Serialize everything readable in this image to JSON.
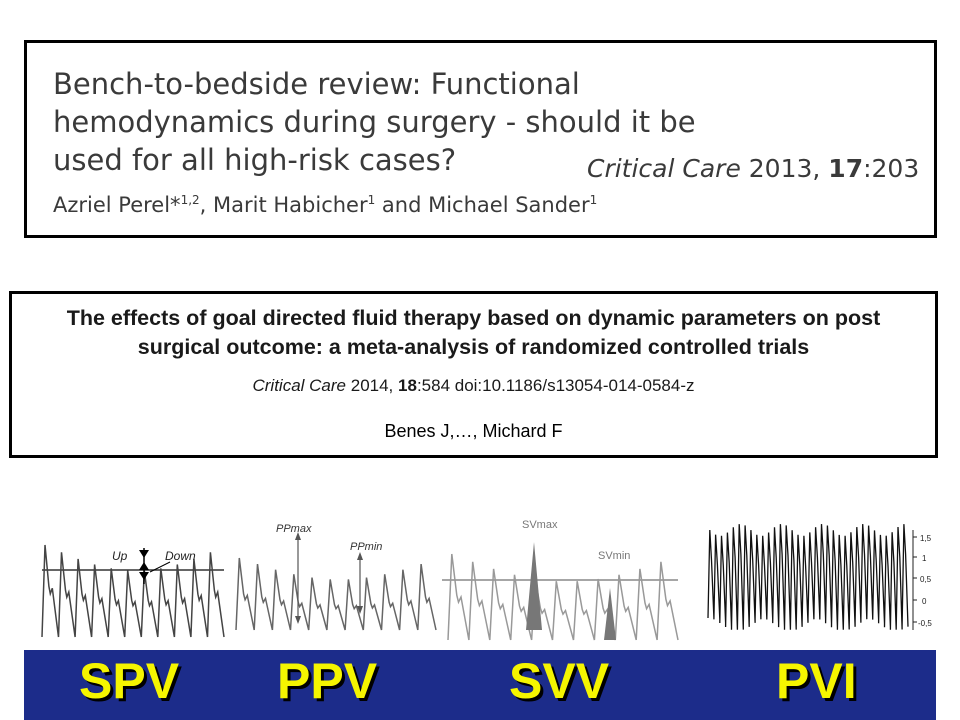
{
  "paper1": {
    "title": "Bench-to-bedside review: Functional hemodynamics during surgery - should it be used for all high-risk cases?",
    "journal_name": "Critical Care",
    "journal_year": " 2013, ",
    "journal_volume": "17",
    "journal_article": ":203",
    "authors": [
      {
        "name": "Azriel Perel*",
        "sup": "1,2"
      },
      {
        "name": ", Marit Habicher",
        "sup": "1"
      },
      {
        "name": " and Michael Sander",
        "sup": "1"
      }
    ]
  },
  "paper2": {
    "title_line1": "The effects of goal directed fluid therapy based on dynamic parameters on post",
    "title_line2": "surgical outcome: a meta-analysis of randomized controlled trials",
    "journal_name": "Critical Care",
    "journal_year": " 2014, ",
    "journal_volume": "18",
    "journal_rest": ":584  doi:10.1186/s13054-014-0584-z",
    "authors_short": "Benes J,…, Michard F"
  },
  "waveforms": {
    "spv": {
      "up_label": "Up",
      "down_label": "Down"
    },
    "ppv": {
      "max_label": "PPmax",
      "min_label": "PPmin"
    },
    "svv": {
      "max_label": "SVmax",
      "min_label": "SVmin"
    },
    "pvi": {
      "ticks": [
        "1,5",
        "1",
        "0,5",
        "0",
        "-0,5"
      ]
    }
  },
  "bottom_bar": {
    "labels": [
      "SPV",
      "PPV",
      "SVV",
      "PVI"
    ],
    "background": "#1c2c8a",
    "text_color": "#f5f500"
  }
}
